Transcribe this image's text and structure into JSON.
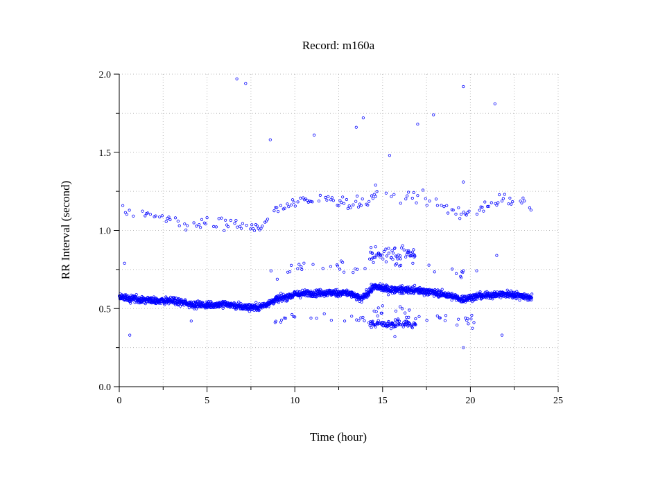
{
  "chart_data": {
    "type": "scatter",
    "title": "Record:  m160a",
    "xlabel": "Time (hour)",
    "ylabel": "RR Interval (second)",
    "xlim": [
      0,
      25
    ],
    "ylim": [
      0,
      2.0
    ],
    "xticks": [
      "0",
      "5",
      "10",
      "15",
      "20",
      "25"
    ],
    "yticks": [
      "0.0",
      "0.5",
      "1.0",
      "1.5",
      "2.0"
    ],
    "grid": true,
    "point_color": "#0000ff",
    "series": [
      {
        "marker": "open-circle",
        "baseline_trend": [
          [
            0.0,
            0.57
          ],
          [
            1.0,
            0.56
          ],
          [
            2.0,
            0.55
          ],
          [
            3.0,
            0.55
          ],
          [
            4.0,
            0.53
          ],
          [
            5.0,
            0.52
          ],
          [
            6.0,
            0.53
          ],
          [
            7.0,
            0.51
          ],
          [
            8.0,
            0.51
          ],
          [
            9.0,
            0.56
          ],
          [
            10.0,
            0.59
          ],
          [
            11.0,
            0.6
          ],
          [
            12.0,
            0.6
          ],
          [
            13.0,
            0.6
          ],
          [
            13.8,
            0.56
          ],
          [
            14.5,
            0.64
          ],
          [
            15.5,
            0.62
          ],
          [
            16.5,
            0.62
          ],
          [
            17.5,
            0.61
          ],
          [
            18.5,
            0.59
          ],
          [
            19.5,
            0.56
          ],
          [
            20.5,
            0.58
          ],
          [
            21.5,
            0.59
          ],
          [
            22.5,
            0.59
          ],
          [
            23.5,
            0.57
          ]
        ],
        "upper_trend": [
          [
            0.2,
            1.13
          ],
          [
            1.0,
            1.1
          ],
          [
            2.0,
            1.1
          ],
          [
            3.0,
            1.08
          ],
          [
            4.0,
            1.03
          ],
          [
            5.0,
            1.04
          ],
          [
            6.0,
            1.04
          ],
          [
            7.0,
            1.03
          ],
          [
            8.0,
            1.02
          ],
          [
            9.0,
            1.14
          ],
          [
            10.0,
            1.17
          ],
          [
            11.0,
            1.19
          ],
          [
            12.0,
            1.21
          ],
          [
            13.0,
            1.17
          ],
          [
            14.0,
            1.17
          ],
          [
            15.0,
            1.26
          ],
          [
            16.0,
            1.22
          ],
          [
            17.0,
            1.23
          ],
          [
            18.0,
            1.18
          ],
          [
            19.0,
            1.12
          ],
          [
            20.0,
            1.1
          ],
          [
            21.0,
            1.17
          ],
          [
            22.0,
            1.19
          ],
          [
            23.0,
            1.18
          ],
          [
            23.5,
            1.13
          ]
        ],
        "outliers": [
          [
            6.7,
            1.97
          ],
          [
            7.2,
            1.94
          ],
          [
            8.6,
            1.58
          ],
          [
            11.1,
            1.61
          ],
          [
            13.5,
            1.66
          ],
          [
            13.9,
            1.72
          ],
          [
            15.4,
            1.48
          ],
          [
            17.0,
            1.68
          ],
          [
            17.9,
            1.74
          ],
          [
            19.6,
            1.92
          ],
          [
            21.4,
            1.81
          ],
          [
            19.6,
            1.31
          ],
          [
            14.6,
            1.29
          ],
          [
            0.6,
            0.33
          ],
          [
            0.3,
            0.79
          ],
          [
            4.1,
            0.42
          ],
          [
            19.6,
            0.25
          ],
          [
            21.8,
            0.33
          ],
          [
            21.5,
            0.84
          ],
          [
            15.7,
            0.32
          ]
        ]
      }
    ]
  }
}
